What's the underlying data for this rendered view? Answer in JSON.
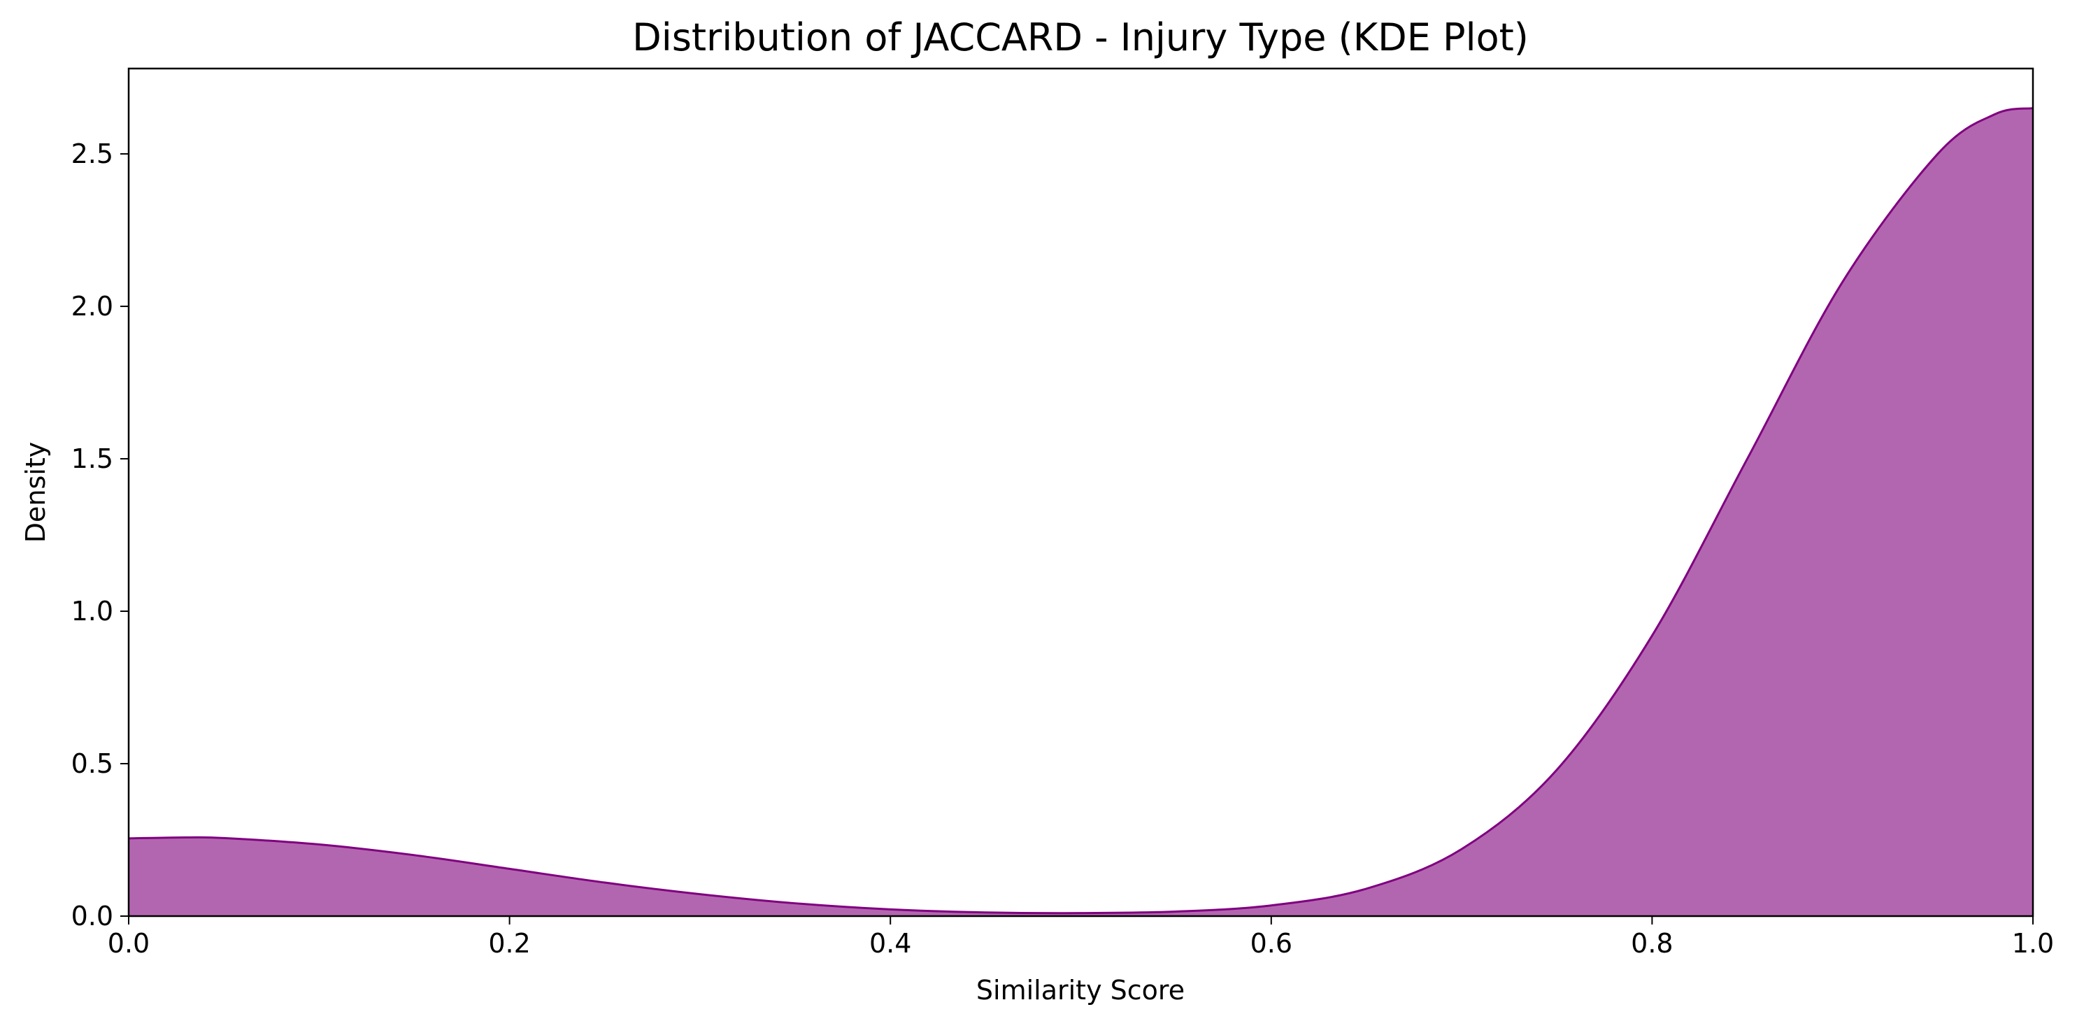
{
  "chart_data": {
    "type": "area",
    "title": "Distribution of JACCARD - Injury Type (KDE Plot)",
    "xlabel": "Similarity Score",
    "ylabel": "Density",
    "xlim": [
      0.0,
      1.0
    ],
    "ylim": [
      0.0,
      2.78
    ],
    "xticks": [
      "0.0",
      "0.2",
      "0.4",
      "0.6",
      "0.8",
      "1.0"
    ],
    "yticks": [
      "0.0",
      "0.5",
      "1.0",
      "1.5",
      "2.0",
      "2.5"
    ],
    "grid": false,
    "legend": "none",
    "series": [
      {
        "x": [
          0.0,
          0.03,
          0.05,
          0.1,
          0.15,
          0.2,
          0.25,
          0.3,
          0.35,
          0.4,
          0.45,
          0.5,
          0.55,
          0.6,
          0.65,
          0.7,
          0.75,
          0.8,
          0.85,
          0.9,
          0.95,
          0.98,
          1.0
        ],
        "y": [
          0.255,
          0.258,
          0.256,
          0.235,
          0.2,
          0.155,
          0.11,
          0.072,
          0.042,
          0.022,
          0.012,
          0.01,
          0.015,
          0.035,
          0.09,
          0.22,
          0.48,
          0.92,
          1.5,
          2.08,
          2.5,
          2.63,
          2.65
        ]
      }
    ],
    "fill_color": "#b366b0",
    "line_color": "#800080"
  }
}
